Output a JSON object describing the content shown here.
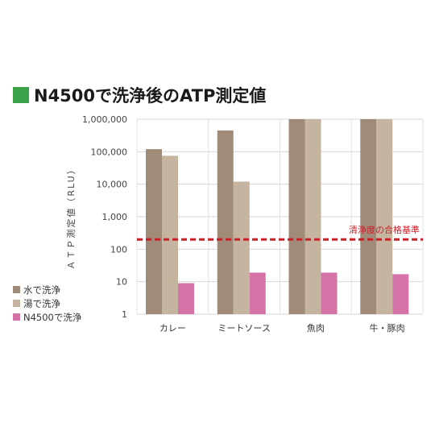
{
  "title": "N4500で洗浄後のATP測定値",
  "chart_data": {
    "type": "bar",
    "title": "N4500で洗浄後のATP測定値",
    "ylabel": "ＡＴＰ測定値（RLU）",
    "xlabel": "",
    "yscale": "log",
    "ylim": [
      1,
      1000000
    ],
    "yticks": [
      {
        "value": 1,
        "label": "1"
      },
      {
        "value": 10,
        "label": "10"
      },
      {
        "value": 100,
        "label": "100"
      },
      {
        "value": 1000,
        "label": "1,000"
      },
      {
        "value": 10000,
        "label": "10,000"
      },
      {
        "value": 100000,
        "label": "100,000"
      },
      {
        "value": 1000000,
        "label": "1,000,000"
      }
    ],
    "categories": [
      "カレー",
      "ミートソース",
      "魚肉",
      "牛・豚肉"
    ],
    "series": [
      {
        "name": "水で洗浄",
        "color": "#a08a78",
        "values": [
          120000,
          450000,
          1000000,
          1000000
        ]
      },
      {
        "name": "湯で洗浄",
        "color": "#c4b4a0",
        "values": [
          75000,
          12000,
          1000000,
          1000000
        ]
      },
      {
        "name": "N4500で洗浄",
        "color": "#d673a6",
        "values": [
          9,
          19,
          19,
          17
        ]
      }
    ],
    "threshold": {
      "value": 200,
      "label": "清浄度の合格基準",
      "color": "#cc1f27"
    },
    "grid": true,
    "legend": "bottom-left"
  }
}
